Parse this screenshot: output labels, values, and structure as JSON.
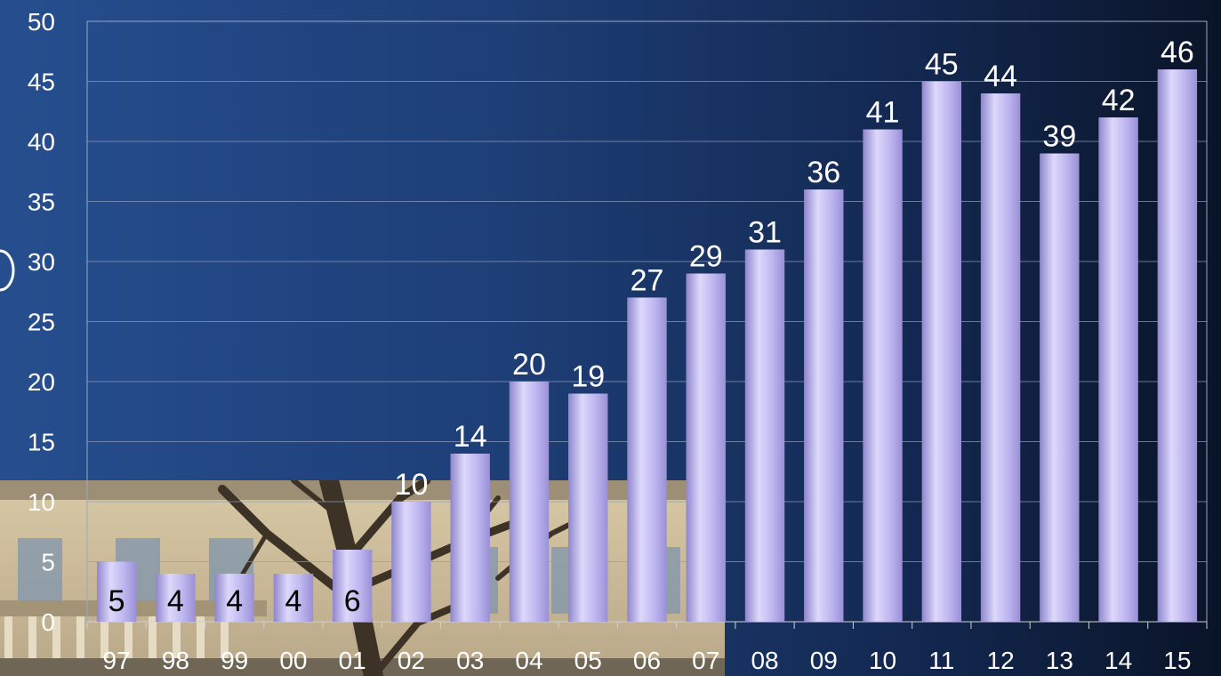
{
  "chart_data": {
    "type": "bar",
    "categories": [
      "97",
      "98",
      "99",
      "00",
      "01",
      "02",
      "03",
      "04",
      "05",
      "06",
      "07",
      "08",
      "09",
      "10",
      "11",
      "12",
      "13",
      "14",
      "15"
    ],
    "values": [
      5,
      4,
      4,
      4,
      6,
      10,
      14,
      20,
      19,
      27,
      29,
      31,
      36,
      41,
      45,
      44,
      39,
      42,
      46
    ],
    "title": "",
    "xlabel": "",
    "ylabel": "",
    "ylim": [
      0,
      50
    ],
    "yticks": [
      0,
      5,
      10,
      15,
      20,
      25,
      30,
      35,
      40,
      45,
      50
    ],
    "grid": true,
    "legend": "none",
    "colors": {
      "bar_light": "#ddd8fb",
      "bar_mid": "#bdb5ef",
      "bar_dark": "#8f86cc",
      "label_on_bar": "#000000",
      "label_above_bar": "#ffffff"
    }
  }
}
